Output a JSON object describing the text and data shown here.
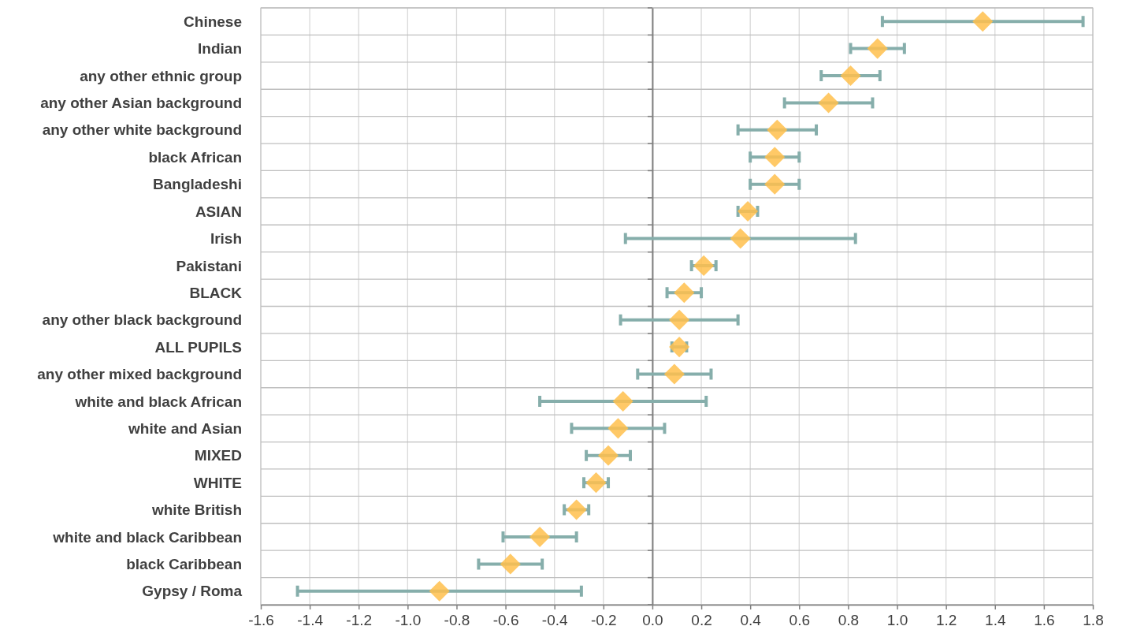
{
  "chart_data": {
    "type": "scatter",
    "orientation": "horizontal",
    "marker": "diamond",
    "grid": true,
    "categories": [
      "Chinese",
      "Indian",
      "any other ethnic group",
      "any other Asian background",
      "any other white background",
      "black African",
      "Bangladeshi",
      "ASIAN",
      "Irish",
      "Pakistani",
      "BLACK",
      "any other black background",
      "ALL PUPILS",
      "any other mixed background",
      "white and black African",
      "white and Asian",
      "MIXED",
      "WHITE",
      "white British",
      "white and black Caribbean",
      "black Caribbean",
      "Gypsy / Roma"
    ],
    "series": [
      {
        "color": "#ffc04c",
        "values": [
          1.35,
          0.92,
          0.81,
          0.72,
          0.51,
          0.5,
          0.5,
          0.39,
          0.36,
          0.21,
          0.13,
          0.11,
          0.11,
          0.09,
          -0.12,
          -0.14,
          -0.18,
          -0.23,
          -0.31,
          -0.46,
          -0.58,
          -0.87
        ],
        "errors": [
          [
            0.94,
            1.76
          ],
          [
            0.81,
            1.03
          ],
          [
            0.69,
            0.93
          ],
          [
            0.54,
            0.9
          ],
          [
            0.35,
            0.67
          ],
          [
            0.4,
            0.6
          ],
          [
            0.4,
            0.6
          ],
          [
            0.35,
            0.43
          ],
          [
            -0.11,
            0.83
          ],
          [
            0.16,
            0.26
          ],
          [
            0.06,
            0.2
          ],
          [
            -0.13,
            0.35
          ],
          [
            0.08,
            0.14
          ],
          [
            -0.06,
            0.24
          ],
          [
            -0.46,
            0.22
          ],
          [
            -0.33,
            0.05
          ],
          [
            -0.27,
            -0.09
          ],
          [
            -0.28,
            -0.18
          ],
          [
            -0.36,
            -0.26
          ],
          [
            -0.61,
            -0.31
          ],
          [
            -0.71,
            -0.45
          ],
          [
            -1.45,
            -0.29
          ]
        ]
      }
    ],
    "xlim": [
      -1.6,
      1.8
    ],
    "xticks": [
      {
        "value": -1.6,
        "label": "-1.6"
      },
      {
        "value": -1.4,
        "label": "-1.4"
      },
      {
        "value": -1.2,
        "label": "-1.2"
      },
      {
        "value": -1,
        "label": "-1.0"
      },
      {
        "value": -0.8,
        "label": "-0.8"
      },
      {
        "value": -0.6,
        "label": "-0.6"
      },
      {
        "value": -0.4,
        "label": "-0.4"
      },
      {
        "value": -0.2,
        "label": "-0.2"
      },
      {
        "value": 0,
        "label": "0.0"
      },
      {
        "value": 0.2,
        "label": "0.2"
      },
      {
        "value": 0.4,
        "label": "0.4"
      },
      {
        "value": 0.6,
        "label": "0.6"
      },
      {
        "value": 0.8,
        "label": "0.8"
      },
      {
        "value": 1,
        "label": "1.0"
      },
      {
        "value": 1.2,
        "label": "1.2"
      },
      {
        "value": 1.4,
        "label": "1.4"
      },
      {
        "value": 1.6,
        "label": "1.6"
      },
      {
        "value": 1.8,
        "label": "1.8"
      }
    ]
  }
}
